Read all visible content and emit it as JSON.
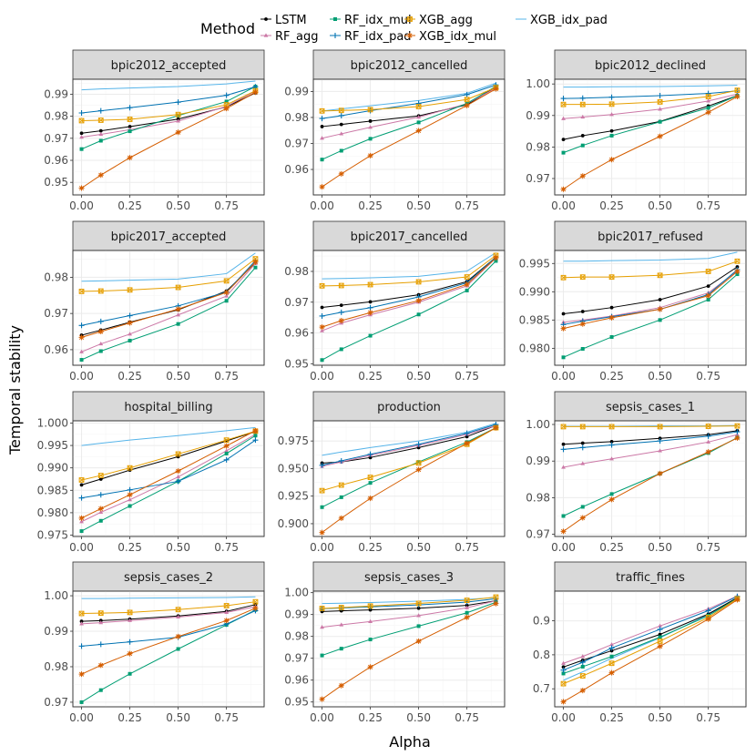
{
  "chart_data": {
    "type": "line",
    "xlabel": "Alpha",
    "ylabel": "Temporal stability",
    "legend": {
      "title": "Method",
      "position": "top",
      "entries": [
        "LSTM",
        "RF_agg",
        "RF_idx_mul",
        "RF_idx_pad",
        "XGB_agg",
        "XGB_idx_mul",
        "XGB_idx_pad"
      ]
    },
    "colors": {
      "LSTM": "#000000",
      "RF_agg": "#cc79a7",
      "RF_idx_mul": "#009e73",
      "RF_idx_pad": "#0072b2",
      "XGB_agg": "#e69f00",
      "XGB_idx_mul": "#d55e00",
      "XGB_idx_pad": "#56b4e9"
    },
    "markers": {
      "LSTM": "dot",
      "RF_agg": "triangle",
      "RF_idx_mul": "square",
      "RF_idx_pad": "plus",
      "XGB_agg": "square-cross",
      "XGB_idx_mul": "star",
      "XGB_idx_pad": "none"
    },
    "x": [
      0,
      0.1,
      0.25,
      0.5,
      0.75,
      0.9
    ],
    "xlim": [
      -0.045,
      0.945
    ],
    "xticks": [
      0,
      0.25,
      0.5,
      0.75
    ],
    "xtick_labels": [
      "0.00",
      "0.25",
      "0.50",
      "0.75"
    ],
    "panels": [
      {
        "title": "bpic2012_accepted",
        "ylim": [
          0.9443,
          0.9968
        ],
        "yticks": [
          0.95,
          0.96,
          0.97,
          0.98,
          0.99
        ],
        "ytick_labels": [
          "0.95",
          "0.96",
          "0.97",
          "0.98",
          "0.99"
        ],
        "series": {
          "LSTM": [
            0.9723,
            0.9734,
            0.9753,
            0.9787,
            0.9843,
            0.9906
          ],
          "RF_agg": [
            0.9705,
            0.9718,
            0.9739,
            0.9778,
            0.9845,
            0.9914
          ],
          "RF_idx_mul": [
            0.9651,
            0.9689,
            0.9732,
            0.9803,
            0.9867,
            0.9935
          ],
          "RF_idx_pad": [
            0.9815,
            0.9825,
            0.9839,
            0.9864,
            0.9895,
            0.9934
          ],
          "XGB_agg": [
            0.978,
            0.9782,
            0.9786,
            0.9808,
            0.9852,
            0.9916
          ],
          "XGB_idx_mul": [
            0.9474,
            0.9533,
            0.9612,
            0.9727,
            0.9835,
            0.9909
          ],
          "XGB_idx_pad": [
            0.992,
            0.9924,
            0.9928,
            0.9935,
            0.9947,
            0.996
          ]
        }
      },
      {
        "title": "bpic2012_cancelled",
        "ylim": [
          0.9502,
          0.9947
        ],
        "yticks": [
          0.96,
          0.97,
          0.98,
          0.99
        ],
        "ytick_labels": [
          "0.96",
          "0.97",
          "0.98",
          "0.99"
        ],
        "series": {
          "LSTM": [
            0.9765,
            0.9773,
            0.9786,
            0.9806,
            0.9849,
            0.9917
          ],
          "RF_agg": [
            0.972,
            0.9737,
            0.9762,
            0.9801,
            0.9853,
            0.9913
          ],
          "RF_idx_mul": [
            0.9638,
            0.9672,
            0.9718,
            0.9781,
            0.9854,
            0.992
          ],
          "RF_idx_pad": [
            0.9796,
            0.9807,
            0.9826,
            0.9854,
            0.9888,
            0.9925
          ],
          "XGB_agg": [
            0.9825,
            0.9827,
            0.983,
            0.9842,
            0.9869,
            0.9915
          ],
          "XGB_idx_mul": [
            0.9533,
            0.9583,
            0.9653,
            0.9749,
            0.9846,
            0.991
          ],
          "XGB_idx_pad": [
            0.9825,
            0.9833,
            0.9845,
            0.9865,
            0.9893,
            0.9932
          ]
        }
      },
      {
        "title": "bpic2012_declined",
        "ylim": [
          0.9648,
          1.0015
        ],
        "yticks": [
          0.97,
          0.98,
          0.99,
          1.0
        ],
        "ytick_labels": [
          "0.97",
          "0.98",
          "0.99",
          "1.00"
        ],
        "series": {
          "LSTM": [
            0.9824,
            0.9836,
            0.9851,
            0.9881,
            0.993,
            0.9963
          ],
          "RF_agg": [
            0.989,
            0.9895,
            0.9903,
            0.992,
            0.9946,
            0.9968
          ],
          "RF_idx_mul": [
            0.9782,
            0.9805,
            0.9836,
            0.988,
            0.9924,
            0.9963
          ],
          "RF_idx_pad": [
            0.9954,
            0.9955,
            0.9958,
            0.9963,
            0.997,
            0.9978
          ],
          "XGB_agg": [
            0.9935,
            0.9935,
            0.9936,
            0.9943,
            0.996,
            0.998
          ],
          "XGB_idx_mul": [
            0.9666,
            0.9708,
            0.976,
            0.9834,
            0.991,
            0.996
          ],
          "XGB_idx_pad": [
            0.999,
            0.999,
            0.9991,
            0.9992,
            0.9994,
            0.9996
          ]
        }
      },
      {
        "title": "bpic2017_accepted",
        "ylim": [
          0.9557,
          0.9874
        ],
        "yticks": [
          0.96,
          0.97,
          0.98
        ],
        "ytick_labels": [
          "0.96",
          "0.97",
          "0.98"
        ],
        "series": {
          "LSTM": [
            0.964,
            0.9654,
            0.9676,
            0.971,
            0.9762,
            0.984
          ],
          "RF_agg": [
            0.9594,
            0.9616,
            0.9643,
            0.9696,
            0.9748,
            0.9838
          ],
          "RF_idx_mul": [
            0.9572,
            0.9596,
            0.9625,
            0.9671,
            0.9735,
            0.9827
          ],
          "RF_idx_pad": [
            0.9667,
            0.9678,
            0.9694,
            0.9721,
            0.9759,
            0.9846
          ],
          "XGB_agg": [
            0.9761,
            0.9762,
            0.9765,
            0.9772,
            0.979,
            0.9851
          ],
          "XGB_idx_mul": [
            0.9634,
            0.965,
            0.9674,
            0.9712,
            0.9758,
            0.9842
          ],
          "XGB_idx_pad": [
            0.9789,
            0.979,
            0.9792,
            0.9795,
            0.981,
            0.9867
          ]
        }
      },
      {
        "title": "bpic2017_cancelled",
        "ylim": [
          0.9495,
          0.9868
        ],
        "yticks": [
          0.95,
          0.96,
          0.97,
          0.98
        ],
        "ytick_labels": [
          "0.95",
          "0.96",
          "0.97",
          "0.98"
        ],
        "series": {
          "LSTM": [
            0.9683,
            0.969,
            0.9701,
            0.9724,
            0.9767,
            0.9846
          ],
          "RF_agg": [
            0.9607,
            0.9632,
            0.9659,
            0.97,
            0.9753,
            0.9843
          ],
          "RF_idx_mul": [
            0.9512,
            0.9547,
            0.9591,
            0.966,
            0.9738,
            0.9834
          ],
          "RF_idx_pad": [
            0.9655,
            0.9667,
            0.9682,
            0.9717,
            0.9763,
            0.9846
          ],
          "XGB_agg": [
            0.9753,
            0.9754,
            0.9757,
            0.9766,
            0.9782,
            0.9852
          ],
          "XGB_idx_mul": [
            0.9619,
            0.964,
            0.9666,
            0.9705,
            0.9758,
            0.9844
          ],
          "XGB_idx_pad": [
            0.9776,
            0.9777,
            0.9779,
            0.9784,
            0.9801,
            0.9861
          ]
        }
      },
      {
        "title": "bpic2017_refused",
        "ylim": [
          0.977,
          0.9973
        ],
        "yticks": [
          0.98,
          0.985,
          0.99,
          0.995
        ],
        "ytick_labels": [
          "0.980",
          "0.985",
          "0.990",
          "0.995"
        ],
        "series": {
          "LSTM": [
            0.9861,
            0.9865,
            0.9872,
            0.9886,
            0.991,
            0.9944
          ],
          "RF_agg": [
            0.9846,
            0.985,
            0.9857,
            0.9872,
            0.9898,
            0.9937
          ],
          "RF_idx_mul": [
            0.9784,
            0.9799,
            0.982,
            0.985,
            0.9886,
            0.9931
          ],
          "RF_idx_pad": [
            0.9842,
            0.9848,
            0.9856,
            0.9869,
            0.9895,
            0.9939
          ],
          "XGB_agg": [
            0.9925,
            0.9926,
            0.9926,
            0.9929,
            0.9936,
            0.9954
          ],
          "XGB_idx_mul": [
            0.9835,
            0.9843,
            0.9854,
            0.9869,
            0.9893,
            0.9936
          ],
          "XGB_idx_pad": [
            0.9954,
            0.9954,
            0.9955,
            0.9956,
            0.9959,
            0.997
          ]
        }
      },
      {
        "title": "hospital_billing",
        "ylim": [
          0.9747,
          1.0005
        ],
        "yticks": [
          0.975,
          0.98,
          0.985,
          0.99,
          0.995,
          1.0
        ],
        "ytick_labels": [
          "0.975",
          "0.980",
          "0.985",
          "0.990",
          "0.995",
          "1.000"
        ],
        "series": {
          "LSTM": [
            0.9862,
            0.9875,
            0.9895,
            0.9925,
            0.996,
            0.9981
          ],
          "RF_agg": [
            0.978,
            0.9801,
            0.9829,
            0.988,
            0.9938,
            0.9975
          ],
          "RF_idx_mul": [
            0.9759,
            0.9782,
            0.9815,
            0.987,
            0.9932,
            0.9972
          ],
          "RF_idx_pad": [
            0.9833,
            0.984,
            0.9851,
            0.987,
            0.9918,
            0.9962
          ],
          "XGB_agg": [
            0.9873,
            0.9883,
            0.99,
            0.9931,
            0.9962,
            0.9982
          ],
          "XGB_idx_mul": [
            0.9788,
            0.9809,
            0.984,
            0.9893,
            0.9949,
            0.9983
          ],
          "XGB_idx_pad": [
            0.995,
            0.9955,
            0.9962,
            0.9972,
            0.9983,
            0.999
          ]
        }
      },
      {
        "title": "production",
        "ylim": [
          0.8884,
          0.9933
        ],
        "yticks": [
          0.9,
          0.925,
          0.95,
          0.975
        ],
        "ytick_labels": [
          "0.900",
          "0.925",
          "0.950",
          "0.975"
        ],
        "series": {
          "LSTM": [
            0.955,
            0.956,
            0.96,
            0.969,
            0.979,
            0.989
          ],
          "RF_agg": [
            0.952,
            0.956,
            0.962,
            0.971,
            0.981,
            0.989
          ],
          "RF_idx_mul": [
            0.915,
            0.924,
            0.937,
            0.956,
            0.974,
            0.987
          ],
          "RF_idx_pad": [
            0.953,
            0.957,
            0.963,
            0.972,
            0.982,
            0.99
          ],
          "XGB_agg": [
            0.93,
            0.935,
            0.942,
            0.955,
            0.972,
            0.987
          ],
          "XGB_idx_mul": [
            0.892,
            0.905,
            0.923,
            0.949,
            0.973,
            0.987
          ],
          "XGB_idx_pad": [
            0.962,
            0.965,
            0.969,
            0.975,
            0.983,
            0.991
          ]
        }
      },
      {
        "title": "sepsis_cases_1",
        "ylim": [
          0.9694,
          1.001
        ],
        "yticks": [
          0.97,
          0.98,
          0.99,
          1.0
        ],
        "ytick_labels": [
          "0.97",
          "0.98",
          "0.99",
          "1.00"
        ],
        "series": {
          "LSTM": [
            0.9946,
            0.9949,
            0.9953,
            0.9962,
            0.9972,
            0.9983
          ],
          "RF_agg": [
            0.9883,
            0.9893,
            0.9906,
            0.9928,
            0.9952,
            0.9972
          ],
          "RF_idx_mul": [
            0.975,
            0.9775,
            0.981,
            0.9866,
            0.9922,
            0.9964
          ],
          "RF_idx_pad": [
            0.9932,
            0.9937,
            0.9944,
            0.9955,
            0.9968,
            0.998
          ],
          "XGB_agg": [
            0.9994,
            0.9994,
            0.9994,
            0.9994,
            0.9995,
            0.9996
          ],
          "XGB_idx_mul": [
            0.9708,
            0.9745,
            0.9795,
            0.9866,
            0.9925,
            0.9963
          ],
          "XGB_idx_pad": [
            0.9995,
            0.9995,
            0.9995,
            0.9996,
            0.9996,
            0.9997
          ]
        }
      },
      {
        "title": "sepsis_cases_2",
        "ylim": [
          0.9687,
          1.0013
        ],
        "yticks": [
          0.97,
          0.98,
          0.99,
          1.0
        ],
        "ytick_labels": [
          "0.97",
          "0.98",
          "0.99",
          "1.00"
        ],
        "series": {
          "LSTM": [
            0.9928,
            0.993,
            0.9934,
            0.9943,
            0.9956,
            0.9975
          ],
          "RF_agg": [
            0.9921,
            0.9924,
            0.993,
            0.994,
            0.9953,
            0.9969
          ],
          "RF_idx_mul": [
            0.97,
            0.9734,
            0.978,
            0.985,
            0.9918,
            0.996
          ],
          "RF_idx_pad": [
            0.9858,
            0.9863,
            0.987,
            0.9883,
            0.992,
            0.9958
          ],
          "XGB_agg": [
            0.995,
            0.9951,
            0.9953,
            0.9961,
            0.9972,
            0.9983
          ],
          "XGB_idx_mul": [
            0.9779,
            0.9804,
            0.9837,
            0.9885,
            0.993,
            0.9965
          ],
          "XGB_idx_pad": [
            0.9992,
            0.9992,
            0.9993,
            0.9994,
            0.9995,
            0.9997
          ]
        }
      },
      {
        "title": "sepsis_cases_3",
        "ylim": [
          0.9478,
          1.0007
        ],
        "yticks": [
          0.95,
          0.96,
          0.97,
          0.98,
          0.99,
          1.0
        ],
        "ytick_labels": [
          "0.95",
          "0.96",
          "0.97",
          "0.98",
          "0.99",
          "1.00"
        ],
        "series": {
          "LSTM": [
            0.9914,
            0.9917,
            0.9921,
            0.9929,
            0.9942,
            0.9963
          ],
          "RF_agg": [
            0.9842,
            0.9853,
            0.9868,
            0.9895,
            0.9931,
            0.9963
          ],
          "RF_idx_mul": [
            0.9713,
            0.9744,
            0.9786,
            0.9847,
            0.9908,
            0.9956
          ],
          "RF_idx_pad": [
            0.9927,
            0.993,
            0.9935,
            0.9944,
            0.9957,
            0.9972
          ],
          "XGB_agg": [
            0.9928,
            0.9932,
            0.9939,
            0.9951,
            0.9965,
            0.998
          ],
          "XGB_idx_mul": [
            0.9513,
            0.9575,
            0.966,
            0.9778,
            0.9887,
            0.995
          ],
          "XGB_idx_pad": [
            0.995,
            0.9952,
            0.9955,
            0.9961,
            0.9969,
            0.9978
          ]
        }
      },
      {
        "title": "traffic_fines",
        "ylim": [
          0.647,
          0.9873
        ],
        "yticks": [
          0.7,
          0.8,
          0.9
        ],
        "ytick_labels": [
          "0.7",
          "0.8",
          "0.9"
        ],
        "series": {
          "LSTM": [
            0.764,
            0.784,
            0.812,
            0.86,
            0.92,
            0.968
          ],
          "RF_agg": [
            0.775,
            0.795,
            0.83,
            0.885,
            0.935,
            0.973
          ],
          "RF_idx_mul": [
            0.745,
            0.765,
            0.795,
            0.852,
            0.915,
            0.966
          ],
          "RF_idx_pad": [
            0.755,
            0.778,
            0.82,
            0.875,
            0.93,
            0.972
          ],
          "XGB_agg": [
            0.715,
            0.738,
            0.775,
            0.84,
            0.91,
            0.965
          ],
          "XGB_idx_mul": [
            0.662,
            0.695,
            0.747,
            0.825,
            0.905,
            0.962
          ],
          "XGB_idx_pad": [
            0.725,
            0.75,
            0.79,
            0.85,
            0.918,
            0.968
          ]
        }
      }
    ]
  }
}
